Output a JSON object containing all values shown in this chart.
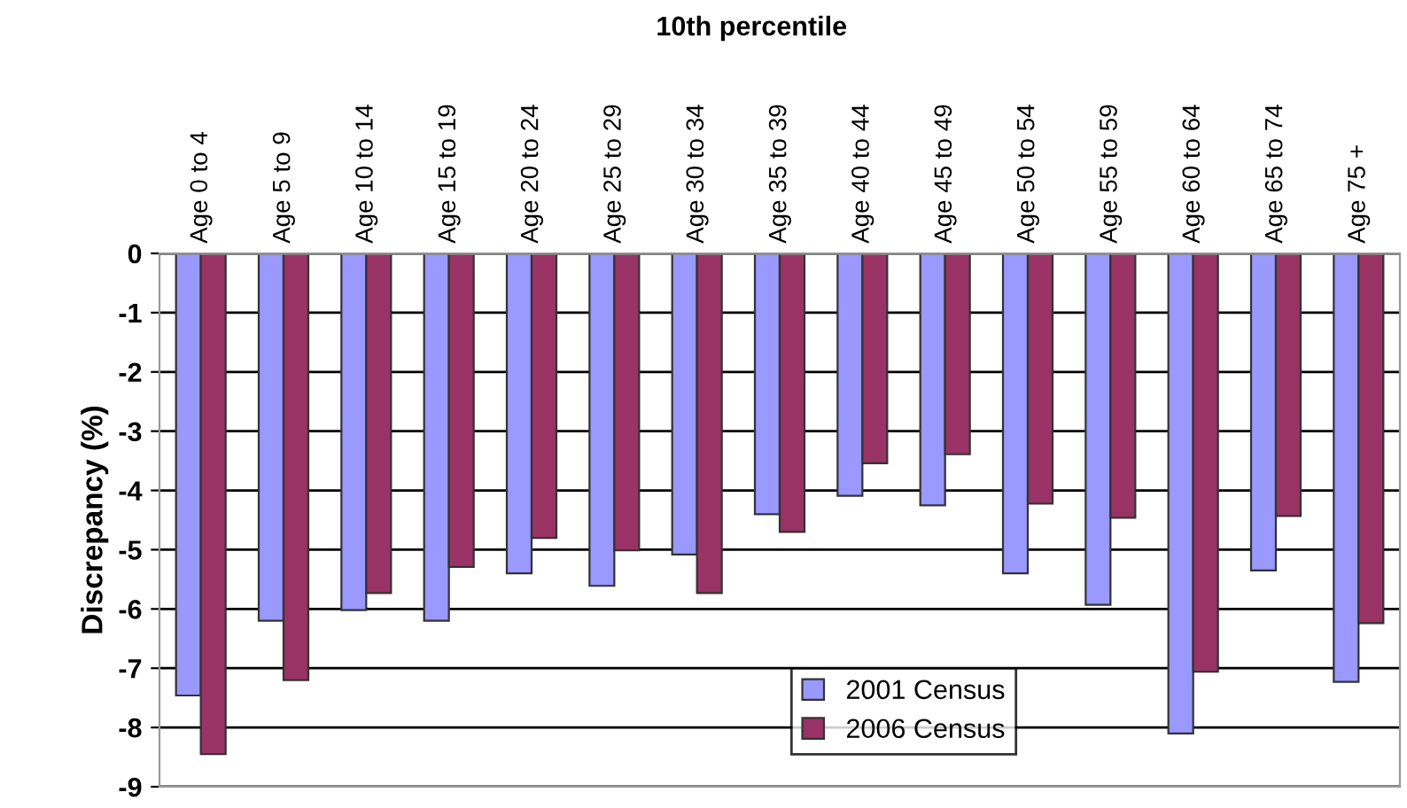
{
  "chart_data": {
    "type": "bar",
    "title": "10th percentile",
    "ylabel": "Discrepancy (%)",
    "categories": [
      "Age 0 to 4",
      "Age 5 to 9",
      "Age 10 to 14",
      "Age 15 to 19",
      "Age 20 to 24",
      "Age 25 to 29",
      "Age 30 to 34",
      "Age 35 to 39",
      "Age 40 to 44",
      "Age 45 to 49",
      "Age 50 to 54",
      "Age 55 to 59",
      "Age 60 to 64",
      "Age 65 to 74",
      "Age 75 +"
    ],
    "series": [
      {
        "name": "2001 Census",
        "color": "#9999ff",
        "values": [
          -7.46,
          -6.2,
          -6.02,
          -6.2,
          -5.4,
          -5.61,
          -5.08,
          -4.4,
          -4.09,
          -4.25,
          -5.4,
          -5.93,
          -8.1,
          -5.35,
          -7.23
        ]
      },
      {
        "name": "2006 Census",
        "color": "#993366",
        "values": [
          -8.45,
          -7.2,
          -5.73,
          -5.29,
          -4.8,
          -5.01,
          -5.73,
          -4.7,
          -3.54,
          -3.39,
          -4.22,
          -4.46,
          -7.06,
          -4.43,
          -6.24
        ]
      }
    ],
    "ylim": [
      -9,
      0
    ],
    "yticks": [
      -9,
      -8,
      -7,
      -6,
      -5,
      -4,
      -3,
      -2,
      -1,
      0
    ],
    "grid": "y",
    "legend": "bottom"
  }
}
